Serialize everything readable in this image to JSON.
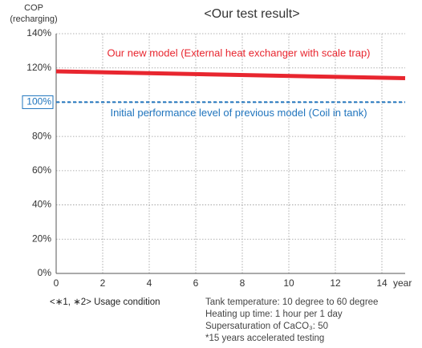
{
  "chart_data": {
    "type": "line",
    "title": "<Our test result>",
    "ylabel": [
      "COP",
      "(recharging)"
    ],
    "xlabel": "year",
    "x": [
      0,
      15
    ],
    "series": [
      {
        "name": "Our new model (External heat exchanger with scale trap)",
        "color": "#e8262f",
        "style": "solid",
        "values": [
          118,
          114
        ]
      },
      {
        "name": "Initial performance level of previous model (Coil in tank)",
        "color": "#1f74bd",
        "style": "dashed",
        "values": [
          100,
          100
        ]
      }
    ],
    "xlim": [
      0,
      15
    ],
    "xticks": [
      0,
      2,
      4,
      6,
      8,
      10,
      12,
      14
    ],
    "ylim": [
      0,
      140
    ],
    "yticks": [
      {
        "value": 0,
        "label": "0%"
      },
      {
        "value": 20,
        "label": "20%"
      },
      {
        "value": 40,
        "label": "40%"
      },
      {
        "value": 60,
        "label": "60%"
      },
      {
        "value": 80,
        "label": "80%"
      },
      {
        "value": 100,
        "label": "100%",
        "highlight": true
      },
      {
        "value": 120,
        "label": "120%"
      },
      {
        "value": 140,
        "label": "140%"
      }
    ],
    "grid": true,
    "notes": {
      "label": "<∗1, ∗2> Usage condition",
      "lines": [
        "Tank temperature: 10 degree to 60 degree",
        "Heating up time: 1 hour per 1 day",
        "Supersaturation of CaCO₃: 50",
        "*15 years accelerated testing"
      ]
    }
  }
}
